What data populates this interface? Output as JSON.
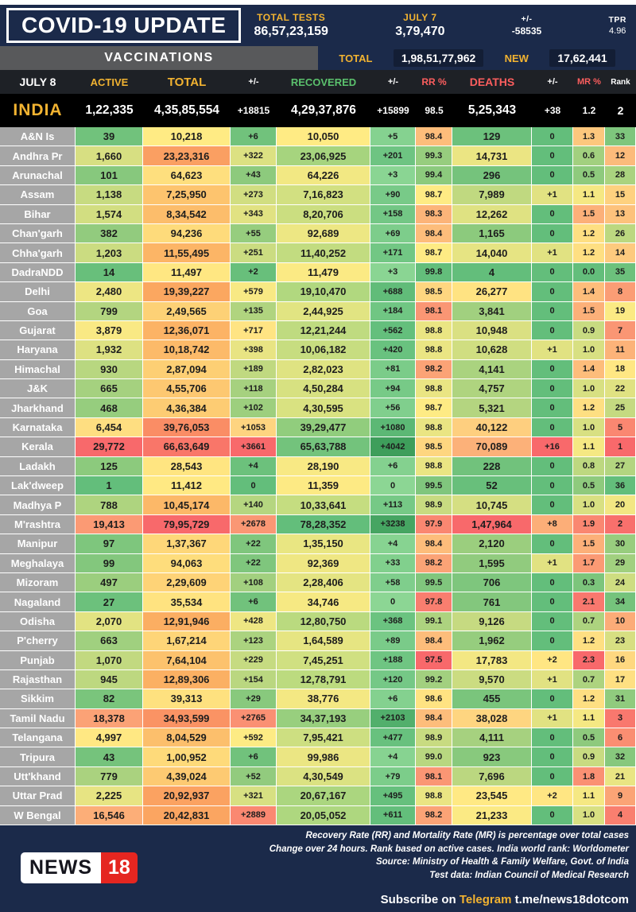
{
  "header": {
    "title": "COVID-19 UPDATE",
    "total_tests_label": "TOTAL TESTS",
    "total_tests_value": "86,57,23,159",
    "july7_label": "JULY 7",
    "july7_value": "3,79,470",
    "pm_label": "+/-",
    "pm_value": "-58535",
    "tpr_label": "TPR",
    "tpr_value": "4.96"
  },
  "vaccinations": {
    "label": "VACCINATIONS",
    "total_label": "TOTAL",
    "total_value": "1,98,51,77,962",
    "new_label": "NEW",
    "new_value": "17,62,441"
  },
  "chart_data": {
    "type": "table",
    "date_label": "JULY 8",
    "columns": [
      "ACTIVE",
      "TOTAL",
      "+/-",
      "RECOVERED",
      "+/-",
      "RR %",
      "DEATHS",
      "+/-",
      "MR %",
      "Rank"
    ],
    "india": {
      "name": "INDIA",
      "values": [
        "1,22,335",
        "4,35,85,554",
        "+18815",
        "4,29,37,876",
        "+15899",
        "98.5",
        "5,25,343",
        "+38",
        "1.2",
        "2"
      ]
    },
    "rows": [
      {
        "state": "A&N Is",
        "values": [
          "39",
          "10,218",
          "+6",
          "10,050",
          "+5",
          "98.4",
          "129",
          "0",
          "1.3",
          "33"
        ]
      },
      {
        "state": "Andhra Pr",
        "values": [
          "1,660",
          "23,23,316",
          "+322",
          "23,06,925",
          "+201",
          "99.3",
          "14,731",
          "0",
          "0.6",
          "12"
        ]
      },
      {
        "state": "Arunachal",
        "values": [
          "101",
          "64,623",
          "+43",
          "64,226",
          "+3",
          "99.4",
          "296",
          "0",
          "0.5",
          "28"
        ]
      },
      {
        "state": "Assam",
        "values": [
          "1,138",
          "7,25,950",
          "+273",
          "7,16,823",
          "+90",
          "98.7",
          "7,989",
          "+1",
          "1.1",
          "15"
        ]
      },
      {
        "state": "Bihar",
        "values": [
          "1,574",
          "8,34,542",
          "+343",
          "8,20,706",
          "+158",
          "98.3",
          "12,262",
          "0",
          "1.5",
          "13"
        ]
      },
      {
        "state": "Chan'garh",
        "values": [
          "382",
          "94,236",
          "+55",
          "92,689",
          "+69",
          "98.4",
          "1,165",
          "0",
          "1.2",
          "26"
        ]
      },
      {
        "state": "Chha'garh",
        "values": [
          "1,203",
          "11,55,495",
          "+251",
          "11,40,252",
          "+171",
          "98.7",
          "14,040",
          "+1",
          "1.2",
          "14"
        ]
      },
      {
        "state": "DadraNDD",
        "values": [
          "14",
          "11,497",
          "+2",
          "11,479",
          "+3",
          "99.8",
          "4",
          "0",
          "0.0",
          "35"
        ]
      },
      {
        "state": "Delhi",
        "values": [
          "2,480",
          "19,39,227",
          "+579",
          "19,10,470",
          "+688",
          "98.5",
          "26,277",
          "0",
          "1.4",
          "8"
        ]
      },
      {
        "state": "Goa",
        "values": [
          "799",
          "2,49,565",
          "+135",
          "2,44,925",
          "+184",
          "98.1",
          "3,841",
          "0",
          "1.5",
          "19"
        ]
      },
      {
        "state": "Gujarat",
        "values": [
          "3,879",
          "12,36,071",
          "+717",
          "12,21,244",
          "+562",
          "98.8",
          "10,948",
          "0",
          "0.9",
          "7"
        ]
      },
      {
        "state": "Haryana",
        "values": [
          "1,932",
          "10,18,742",
          "+398",
          "10,06,182",
          "+420",
          "98.8",
          "10,628",
          "+1",
          "1.0",
          "11"
        ]
      },
      {
        "state": "Himachal",
        "values": [
          "930",
          "2,87,094",
          "+189",
          "2,82,023",
          "+81",
          "98.2",
          "4,141",
          "0",
          "1.4",
          "18"
        ]
      },
      {
        "state": "J&K",
        "values": [
          "665",
          "4,55,706",
          "+118",
          "4,50,284",
          "+94",
          "98.8",
          "4,757",
          "0",
          "1.0",
          "22"
        ]
      },
      {
        "state": "Jharkhand",
        "values": [
          "468",
          "4,36,384",
          "+102",
          "4,30,595",
          "+56",
          "98.7",
          "5,321",
          "0",
          "1.2",
          "25"
        ]
      },
      {
        "state": "Karnataka",
        "values": [
          "6,454",
          "39,76,053",
          "+1053",
          "39,29,477",
          "+1080",
          "98.8",
          "40,122",
          "0",
          "1.0",
          "5"
        ]
      },
      {
        "state": "Kerala",
        "values": [
          "29,772",
          "66,63,649",
          "+3661",
          "65,63,788",
          "+4042",
          "98.5",
          "70,089",
          "+16",
          "1.1",
          "1"
        ]
      },
      {
        "state": "Ladakh",
        "values": [
          "125",
          "28,543",
          "+4",
          "28,190",
          "+6",
          "98.8",
          "228",
          "0",
          "0.8",
          "27"
        ]
      },
      {
        "state": "Lak'dweep",
        "values": [
          "1",
          "11,412",
          "0",
          "11,359",
          "0",
          "99.5",
          "52",
          "0",
          "0.5",
          "36"
        ]
      },
      {
        "state": "Madhya P",
        "values": [
          "788",
          "10,45,174",
          "+140",
          "10,33,641",
          "+113",
          "98.9",
          "10,745",
          "0",
          "1.0",
          "20"
        ]
      },
      {
        "state": "M'rashtra",
        "values": [
          "19,413",
          "79,95,729",
          "+2678",
          "78,28,352",
          "+3238",
          "97.9",
          "1,47,964",
          "+8",
          "1.9",
          "2"
        ]
      },
      {
        "state": "Manipur",
        "values": [
          "97",
          "1,37,367",
          "+22",
          "1,35,150",
          "+4",
          "98.4",
          "2,120",
          "0",
          "1.5",
          "30"
        ]
      },
      {
        "state": "Meghalaya",
        "values": [
          "99",
          "94,063",
          "+22",
          "92,369",
          "+33",
          "98.2",
          "1,595",
          "+1",
          "1.7",
          "29"
        ]
      },
      {
        "state": "Mizoram",
        "values": [
          "497",
          "2,29,609",
          "+108",
          "2,28,406",
          "+58",
          "99.5",
          "706",
          "0",
          "0.3",
          "24"
        ]
      },
      {
        "state": "Nagaland",
        "values": [
          "27",
          "35,534",
          "+6",
          "34,746",
          "0",
          "97.8",
          "761",
          "0",
          "2.1",
          "34"
        ]
      },
      {
        "state": "Odisha",
        "values": [
          "2,070",
          "12,91,946",
          "+428",
          "12,80,750",
          "+368",
          "99.1",
          "9,126",
          "0",
          "0.7",
          "10"
        ]
      },
      {
        "state": "P'cherry",
        "values": [
          "663",
          "1,67,214",
          "+123",
          "1,64,589",
          "+89",
          "98.4",
          "1,962",
          "0",
          "1.2",
          "23"
        ]
      },
      {
        "state": "Punjab",
        "values": [
          "1,070",
          "7,64,104",
          "+229",
          "7,45,251",
          "+188",
          "97.5",
          "17,783",
          "+2",
          "2.3",
          "16"
        ]
      },
      {
        "state": "Rajasthan",
        "values": [
          "945",
          "12,89,306",
          "+154",
          "12,78,791",
          "+120",
          "99.2",
          "9,570",
          "+1",
          "0.7",
          "17"
        ]
      },
      {
        "state": "Sikkim",
        "values": [
          "82",
          "39,313",
          "+29",
          "38,776",
          "+6",
          "98.6",
          "455",
          "0",
          "1.2",
          "31"
        ]
      },
      {
        "state": "Tamil Nadu",
        "values": [
          "18,378",
          "34,93,599",
          "+2765",
          "34,37,193",
          "+2103",
          "98.4",
          "38,028",
          "+1",
          "1.1",
          "3"
        ]
      },
      {
        "state": "Telangana",
        "values": [
          "4,997",
          "8,04,529",
          "+592",
          "7,95,421",
          "+477",
          "98.9",
          "4,111",
          "0",
          "0.5",
          "6"
        ]
      },
      {
        "state": "Tripura",
        "values": [
          "43",
          "1,00,952",
          "+6",
          "99,986",
          "+4",
          "99.0",
          "923",
          "0",
          "0.9",
          "32"
        ]
      },
      {
        "state": "Utt'khand",
        "values": [
          "779",
          "4,39,024",
          "+52",
          "4,30,549",
          "+79",
          "98.1",
          "7,696",
          "0",
          "1.8",
          "21"
        ]
      },
      {
        "state": "Uttar Prad",
        "values": [
          "2,225",
          "20,92,937",
          "+321",
          "20,67,167",
          "+495",
          "98.8",
          "23,545",
          "+2",
          "1.1",
          "9"
        ]
      },
      {
        "state": "W Bengal",
        "values": [
          "16,546",
          "20,42,831",
          "+2889",
          "20,05,052",
          "+611",
          "98.2",
          "21,233",
          "0",
          "1.0",
          "4"
        ]
      }
    ]
  },
  "footer": {
    "logo_news": "NEWS",
    "logo_18": "18",
    "credits": [
      "Recovery Rate (RR) and Mortality Rate (MR) is percentage over total cases",
      "Change over 24 hours. Rank based on active cases. India world rank: Worldometer",
      "Source: Ministry of Health & Family Welfare, Govt. of India",
      "Test data: Indian Council of Medical Research"
    ],
    "subscribe_prefix": "Subscribe on",
    "subscribe_brand": "Telegram",
    "subscribe_handle": "t.me/news18dotcom"
  },
  "colors": {
    "navy": "#1B2A4A",
    "gold": "#F2B331",
    "green_header": "#5BC16D",
    "red_header": "#FC5E5E",
    "gray_strip": "#58595B",
    "state_gray": "#A6A6A6",
    "colhead_bg": "#1E2126",
    "india_bg": "#000000",
    "text_dark": "#1D1D1D",
    "logo_red": "#E52620"
  },
  "heatmap": {
    "column_stops": [
      [
        "#63BE7B",
        "#FFEB84",
        "#F8696B"
      ],
      [
        "#FFEB84",
        "#FBAA60",
        "#F8696B"
      ],
      [
        "#63BE7B",
        "#FFEB84",
        "#F8696B"
      ],
      [
        "#FFEB84",
        "#B5D97F",
        "#63BE7B"
      ],
      [
        "#8CD694",
        "#63BE7B",
        "#3E9E5B"
      ],
      [
        "#F8696B",
        "#FFEB84",
        "#63BE7B"
      ],
      [
        "#63BE7B",
        "#FFEB84",
        "#F8696B"
      ],
      [
        "#63BE7B",
        "#FFEB84",
        "#F8696B"
      ],
      [
        "#63BE7B",
        "#FFEB84",
        "#F8696B"
      ],
      [
        "#F8696B",
        "#FFEB84",
        "#63BE7B"
      ]
    ]
  }
}
